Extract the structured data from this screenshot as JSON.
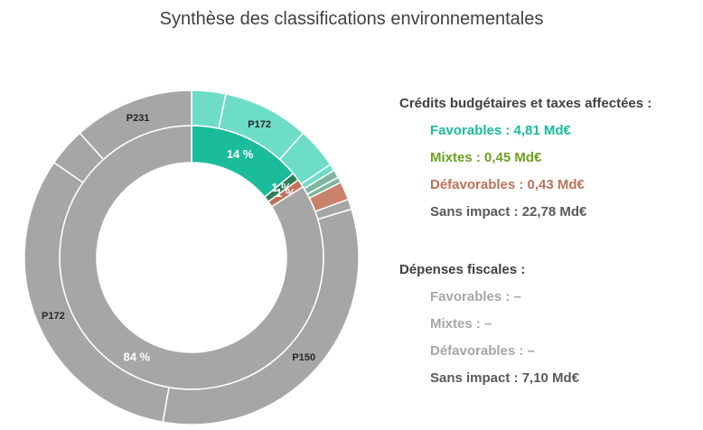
{
  "title": "Synthèse des classifications environnementales",
  "chart_data": {
    "type": "donut",
    "title": "Synthèse des classifications environnementales",
    "inner_ring": {
      "segments": [
        {
          "category": "Favorables",
          "value": 14,
          "label": "14 %",
          "color": "#1ABC9C"
        },
        {
          "category": "Mixtes",
          "value": 1,
          "label": "1 %",
          "color": "#2E7D5B"
        },
        {
          "category": "Défavorables",
          "value": 1,
          "label": "1 %",
          "color": "#C0715B"
        },
        {
          "category": "Sans impact",
          "value": 84,
          "label": "84 %",
          "color": "#A6A6A6"
        }
      ]
    },
    "outer_ring": {
      "segments": [
        {
          "category": "Favorables",
          "value": 3.0,
          "label": "",
          "color": "#6EDDC8"
        },
        {
          "category": "Favorables",
          "value": 7.6,
          "label": "P172",
          "color": "#6EDDC8"
        },
        {
          "category": "Favorables",
          "value": 3.6,
          "label": "",
          "color": "#6EDDC8"
        },
        {
          "category": "Favorables",
          "value": 0.6,
          "label": "",
          "color": "#6EDDC8"
        },
        {
          "category": "Mixtes",
          "value": 0.7,
          "label": "",
          "color": "#7FB59E"
        },
        {
          "category": "Mixtes",
          "value": 0.5,
          "label": "",
          "color": "#7FB59E"
        },
        {
          "category": "Défavorables",
          "value": 1.6,
          "label": "",
          "color": "#C9826C"
        },
        {
          "category": "Sans impact",
          "value": 0.9,
          "label": "",
          "color": "#A6A6A6"
        },
        {
          "category": "Sans impact",
          "value": 29.5,
          "label": "P150",
          "color": "#A6A6A6"
        },
        {
          "category": "Sans impact",
          "value": 29.0,
          "label": "P172",
          "color": "#A6A6A6"
        },
        {
          "category": "Sans impact",
          "value": 3.4,
          "label": "",
          "color": "#A6A6A6"
        },
        {
          "category": "Sans impact",
          "value": 10.6,
          "label": "P231",
          "color": "#A6A6A6"
        }
      ]
    }
  },
  "legend": {
    "credits_heading": "Crédits budgétaires et taxes affectées :",
    "credits": [
      {
        "text": "Favorables : 4,81 Md€",
        "color": "#1ABC9C"
      },
      {
        "text": "Mixtes : 0,45 Md€",
        "color": "#6FA021"
      },
      {
        "text": "Défavorables : 0,43 Md€",
        "color": "#C0715B"
      },
      {
        "text": "Sans impact : 22,78 Md€",
        "color": "#595959"
      }
    ],
    "fiscal_heading": "Dépenses fiscales :",
    "fiscal": [
      {
        "text": "Favorables : –",
        "color": "#A6A6A6"
      },
      {
        "text": "Mixtes : –",
        "color": "#A6A6A6"
      },
      {
        "text": "Défavorables : –",
        "color": "#A6A6A6"
      },
      {
        "text": "Sans impact : 7,10 Md€",
        "color": "#595959"
      }
    ]
  }
}
